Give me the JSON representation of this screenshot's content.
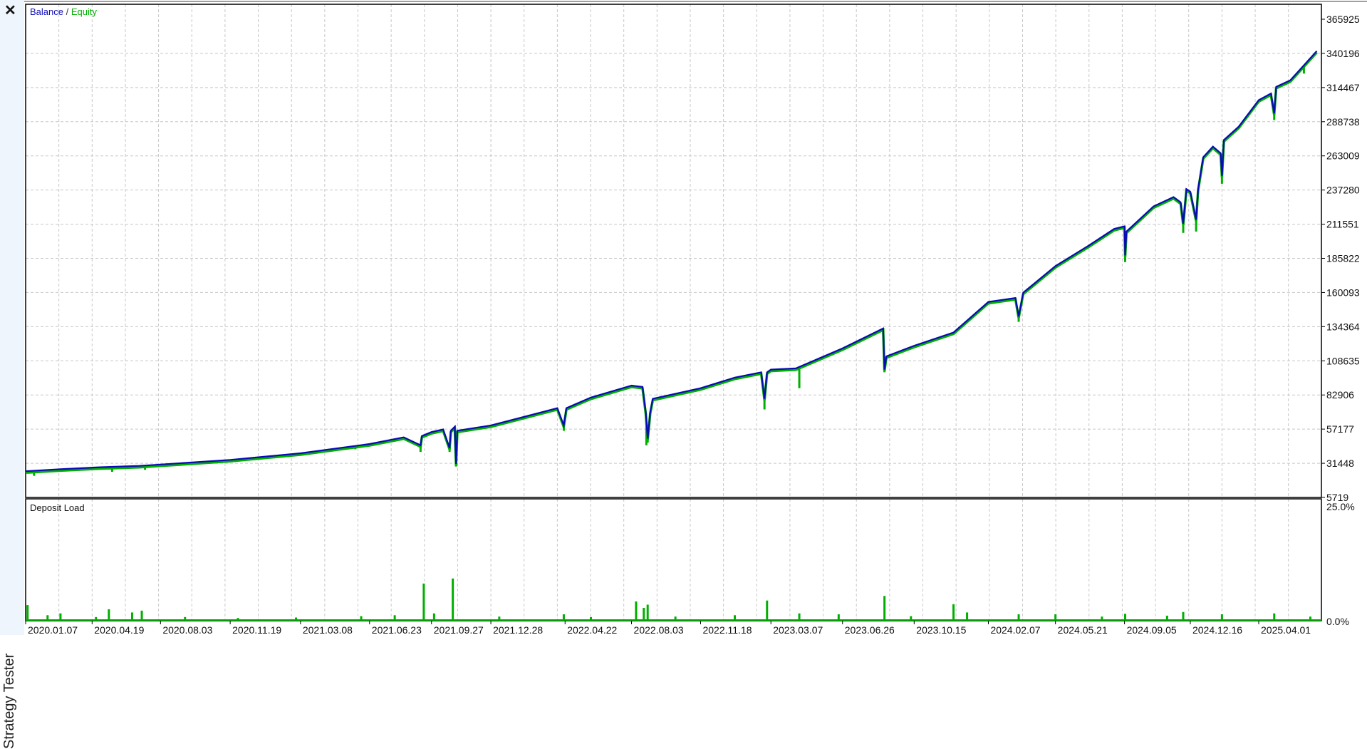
{
  "panel": {
    "close_icon": "close-icon",
    "title": "Strategy Tester"
  },
  "colors": {
    "balance": "#0a0ab4",
    "equity": "#00b000",
    "grid": "#c8c8c8",
    "load": "#00b000"
  },
  "chart_data": [
    {
      "type": "line",
      "legend": {
        "balance": "Balance",
        "separator": " / ",
        "equity": "Equity"
      },
      "y_ticks": [
        "365925",
        "340196",
        "314467",
        "288738",
        "263009",
        "237280",
        "211551",
        "185822",
        "160093",
        "134364",
        "108635",
        "82906",
        "57177",
        "31448",
        "5719"
      ],
      "ylim": [
        5719,
        365925
      ],
      "grid": true,
      "x_ticks": [
        "2020.01.07",
        "2020.04.19",
        "2020.08.03",
        "2020.11.19",
        "2021.03.08",
        "2021.06.23",
        "2021.09.27",
        "2021.12.28",
        "2022.04.22",
        "2022.08.03",
        "2022.11.18",
        "2023.03.07",
        "2023.06.26",
        "2023.10.15",
        "2024.02.07",
        "2024.05.21",
        "2024.09.05",
        "2024.12.16",
        "2025.04.01"
      ],
      "series": [
        {
          "name": "Balance",
          "points": [
            [
              "2020.01.07",
              25500
            ],
            [
              "2020.03.01",
              27000
            ],
            [
              "2020.05.01",
              28500
            ],
            [
              "2020.07.01",
              29500
            ],
            [
              "2020.08.03",
              30500
            ],
            [
              "2020.11.19",
              34000
            ],
            [
              "2021.03.08",
              39000
            ],
            [
              "2021.06.23",
              46000
            ],
            [
              "2021.08.15",
              51000
            ],
            [
              "2021.09.10",
              45000
            ],
            [
              "2021.09.12",
              52000
            ],
            [
              "2021.09.27",
              55000
            ],
            [
              "2021.10.15",
              57000
            ],
            [
              "2021.10.25",
              43000
            ],
            [
              "2021.10.27",
              56000
            ],
            [
              "2021.11.02",
              59000
            ],
            [
              "2021.11.04",
              31000
            ],
            [
              "2021.11.06",
              56000
            ],
            [
              "2021.12.28",
              60000
            ],
            [
              "2022.04.10",
              73000
            ],
            [
              "2022.04.20",
              60000
            ],
            [
              "2022.04.24",
              73000
            ],
            [
              "2022.06.01",
              81000
            ],
            [
              "2022.08.03",
              90000
            ],
            [
              "2022.08.20",
              89000
            ],
            [
              "2022.08.25",
              70000
            ],
            [
              "2022.08.28",
              50000
            ],
            [
              "2022.09.01",
              70000
            ],
            [
              "2022.09.05",
              80000
            ],
            [
              "2022.11.18",
              88000
            ],
            [
              "2023.01.10",
              96000
            ],
            [
              "2023.02.20",
              100000
            ],
            [
              "2023.02.25",
              80000
            ],
            [
              "2023.03.01",
              100000
            ],
            [
              "2023.03.07",
              102000
            ],
            [
              "2023.04.15",
              103000
            ],
            [
              "2023.06.26",
              118000
            ],
            [
              "2023.08.28",
              133000
            ],
            [
              "2023.08.30",
              102000
            ],
            [
              "2023.09.02",
              112000
            ],
            [
              "2023.10.15",
              120000
            ],
            [
              "2023.12.15",
              130000
            ],
            [
              "2024.02.07",
              153000
            ],
            [
              "2024.03.20",
              156000
            ],
            [
              "2024.03.25",
              142000
            ],
            [
              "2024.04.01",
              160000
            ],
            [
              "2024.05.21",
              180000
            ],
            [
              "2024.07.10",
              195000
            ],
            [
              "2024.08.20",
              208000
            ],
            [
              "2024.09.05",
              210000
            ],
            [
              "2024.09.06",
              188000
            ],
            [
              "2024.09.08",
              206000
            ],
            [
              "2024.10.20",
              225000
            ],
            [
              "2024.11.20",
              232000
            ],
            [
              "2024.12.01",
              228000
            ],
            [
              "2024.12.05",
              212000
            ],
            [
              "2024.12.10",
              238000
            ],
            [
              "2024.12.16",
              236000
            ],
            [
              "2024.12.25",
              215000
            ],
            [
              "2024.12.28",
              238000
            ],
            [
              "2025.01.05",
              262000
            ],
            [
              "2025.01.20",
              270000
            ],
            [
              "2025.02.01",
              265000
            ],
            [
              "2025.02.03",
              248000
            ],
            [
              "2025.02.06",
              275000
            ],
            [
              "2025.03.01",
              285000
            ],
            [
              "2025.04.01",
              305000
            ],
            [
              "2025.04.20",
              310000
            ],
            [
              "2025.04.25",
              295000
            ],
            [
              "2025.04.28",
              315000
            ],
            [
              "2025.05.20",
              320000
            ],
            [
              "2025.06.30",
              342000
            ]
          ]
        },
        {
          "name": "Equity",
          "dips": [
            [
              "2020.01.20",
              22000
            ],
            [
              "2020.05.20",
              25000
            ],
            [
              "2020.07.10",
              26500
            ],
            [
              "2021.06.01",
              42000
            ],
            [
              "2021.09.10",
              40000
            ],
            [
              "2021.10.25",
              40000
            ],
            [
              "2021.11.04",
              29000
            ],
            [
              "2022.04.20",
              56000
            ],
            [
              "2022.08.26",
              45000
            ],
            [
              "2022.08.28",
              47000
            ],
            [
              "2023.02.25",
              72000
            ],
            [
              "2023.04.20",
              88000
            ],
            [
              "2023.08.30",
              100000
            ],
            [
              "2024.03.25",
              138000
            ],
            [
              "2024.09.06",
              183000
            ],
            [
              "2024.12.05",
              205000
            ],
            [
              "2024.12.25",
              206000
            ],
            [
              "2025.02.03",
              242000
            ],
            [
              "2025.04.25",
              290000
            ],
            [
              "2025.06.10",
              325000
            ]
          ]
        }
      ]
    },
    {
      "type": "bar",
      "title": "Deposit Load",
      "y_ticks": [
        "25.0%",
        "0.0%"
      ],
      "ylim": [
        0,
        25
      ],
      "bars": [
        [
          "2020.01.10",
          3.4
        ],
        [
          "2020.02.10",
          1.2
        ],
        [
          "2020.03.01",
          1.6
        ],
        [
          "2020.04.25",
          0.8
        ],
        [
          "2020.05.15",
          2.5
        ],
        [
          "2020.06.20",
          1.8
        ],
        [
          "2020.07.05",
          2.2
        ],
        [
          "2020.09.10",
          0.8
        ],
        [
          "2020.12.01",
          0.6
        ],
        [
          "2021.03.01",
          0.7
        ],
        [
          "2021.06.10",
          1.0
        ],
        [
          "2021.08.01",
          1.2
        ],
        [
          "2021.09.15",
          8.1
        ],
        [
          "2021.10.01",
          1.6
        ],
        [
          "2021.10.30",
          9.2
        ],
        [
          "2022.01.10",
          0.9
        ],
        [
          "2022.04.20",
          1.4
        ],
        [
          "2022.06.01",
          0.8
        ],
        [
          "2022.08.10",
          4.2
        ],
        [
          "2022.08.22",
          2.8
        ],
        [
          "2022.08.28",
          3.5
        ],
        [
          "2022.10.10",
          0.9
        ],
        [
          "2023.01.10",
          1.2
        ],
        [
          "2023.03.01",
          4.4
        ],
        [
          "2023.04.20",
          1.6
        ],
        [
          "2023.06.20",
          1.4
        ],
        [
          "2023.08.30",
          5.4
        ],
        [
          "2023.10.10",
          1.0
        ],
        [
          "2023.12.15",
          3.6
        ],
        [
          "2024.01.05",
          1.8
        ],
        [
          "2024.03.25",
          1.4
        ],
        [
          "2024.05.21",
          1.4
        ],
        [
          "2024.08.01",
          0.9
        ],
        [
          "2024.09.06",
          1.5
        ],
        [
          "2024.11.10",
          1.1
        ],
        [
          "2024.12.05",
          1.9
        ],
        [
          "2025.02.03",
          1.4
        ],
        [
          "2025.04.25",
          1.6
        ],
        [
          "2025.06.20",
          0.9
        ]
      ]
    }
  ]
}
